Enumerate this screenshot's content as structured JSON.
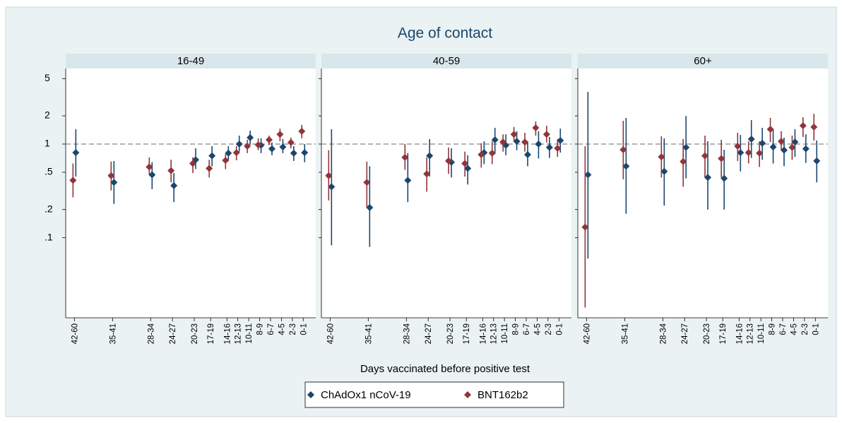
{
  "chart_data": {
    "type": "errorbar",
    "title": "Age of contact",
    "x_label": "Days vaccinated before positive test",
    "log_y": true,
    "reference_line": 1,
    "x": [
      42,
      35,
      28,
      24,
      20,
      17,
      14,
      12,
      10,
      8,
      6,
      4,
      2,
      0
    ],
    "xlim": [
      43.6,
      -2.3
    ],
    "xticks": [
      {
        "value": 42,
        "label": "42-60"
      },
      {
        "value": 35,
        "label": "35-41"
      },
      {
        "value": 28,
        "label": "28-34"
      },
      {
        "value": 24,
        "label": "24-27"
      },
      {
        "value": 20,
        "label": "20-23"
      },
      {
        "value": 17,
        "label": "17-19"
      },
      {
        "value": 14,
        "label": "14-16"
      },
      {
        "value": 12,
        "label": "12-13"
      },
      {
        "value": 10,
        "label": "10-11"
      },
      {
        "value": 8,
        "label": "8-9"
      },
      {
        "value": 6,
        "label": "6-7"
      },
      {
        "value": 4,
        "label": "4-5"
      },
      {
        "value": 2,
        "label": "2-3"
      },
      {
        "value": 0,
        "label": "0-1"
      }
    ],
    "ylim": [
      0.014,
      6.4
    ],
    "yticks": [
      5,
      2,
      1,
      {
        "value": 0.5,
        "label": ".5"
      },
      {
        "value": 0.2,
        "label": ".2"
      },
      {
        "value": 0.1,
        "label": ".1"
      }
    ],
    "series": [
      {
        "name": "ChAdOx1 nCoV-19",
        "color": "#1a476f"
      },
      {
        "name": "BNT162b2",
        "color": "#90353b"
      }
    ],
    "panels": [
      {
        "title": "16-49",
        "series": [
          {
            "values": [
              0.81,
              0.39,
              0.47,
              0.36,
              0.68,
              0.75,
              0.8,
              1.0,
              1.17,
              0.97,
              0.89,
              0.93,
              0.8,
              0.81
            ],
            "lower": [
              0.45,
              0.23,
              0.33,
              0.24,
              0.54,
              0.58,
              0.66,
              0.83,
              0.98,
              0.8,
              0.76,
              0.8,
              0.66,
              0.64
            ],
            "upper": [
              1.44,
              0.66,
              0.64,
              0.49,
              0.9,
              0.95,
              0.95,
              1.23,
              1.39,
              1.15,
              1.04,
              1.13,
              0.95,
              1.0
            ]
          },
          {
            "values": [
              0.41,
              0.46,
              0.57,
              0.52,
              0.62,
              0.55,
              0.67,
              0.81,
              0.95,
              0.98,
              1.11,
              1.27,
              1.04,
              1.37
            ],
            "lower": [
              0.27,
              0.32,
              0.47,
              0.39,
              0.49,
              0.44,
              0.54,
              0.67,
              0.8,
              0.86,
              0.98,
              1.07,
              0.9,
              1.15
            ],
            "upper": [
              0.62,
              0.65,
              0.72,
              0.68,
              0.72,
              0.68,
              0.78,
              0.95,
              1.11,
              1.15,
              1.23,
              1.46,
              1.17,
              1.6
            ]
          }
        ]
      },
      {
        "title": "40-59",
        "series": [
          {
            "values": [
              0.35,
              0.21,
              0.41,
              0.75,
              0.64,
              0.55,
              0.81,
              1.11,
              0.97,
              1.07,
              0.77,
              1.0,
              0.92,
              1.09
            ],
            "lower": [
              0.083,
              0.08,
              0.24,
              0.45,
              0.44,
              0.37,
              0.61,
              0.78,
              0.76,
              0.86,
              0.58,
              0.7,
              0.71,
              0.81
            ],
            "upper": [
              1.44,
              0.58,
              0.8,
              1.13,
              0.9,
              0.76,
              1.07,
              1.49,
              1.27,
              1.37,
              1.07,
              1.37,
              1.19,
              1.46
            ]
          },
          {
            "values": [
              0.46,
              0.39,
              0.72,
              0.48,
              0.66,
              0.62,
              0.77,
              0.8,
              1.05,
              1.27,
              1.05,
              1.49,
              1.27,
              0.9
            ],
            "lower": [
              0.25,
              0.21,
              0.53,
              0.31,
              0.48,
              0.45,
              0.56,
              0.61,
              0.83,
              1.07,
              0.83,
              1.23,
              1.04,
              0.73
            ],
            "upper": [
              0.86,
              0.65,
              1.0,
              0.72,
              0.92,
              0.83,
              1.02,
              1.07,
              1.27,
              1.52,
              1.32,
              1.74,
              1.57,
              1.13
            ]
          }
        ]
      },
      {
        "title": "60+",
        "series": [
          {
            "values": [
              0.47,
              0.58,
              0.51,
              0.92,
              0.44,
              0.43,
              0.81,
              1.13,
              1.02,
              0.93,
              0.86,
              1.05,
              0.89,
              0.66
            ],
            "lower": [
              0.06,
              0.18,
              0.22,
              0.43,
              0.2,
              0.2,
              0.51,
              0.71,
              0.68,
              0.62,
              0.58,
              0.73,
              0.63,
              0.39
            ],
            "upper": [
              3.6,
              1.9,
              1.15,
              1.99,
              1.07,
              0.87,
              1.25,
              1.8,
              1.49,
              1.44,
              1.17,
              1.44,
              1.27,
              1.09
            ]
          },
          {
            "values": [
              0.13,
              0.87,
              0.73,
              0.65,
              0.75,
              0.7,
              0.95,
              0.81,
              0.8,
              1.44,
              1.07,
              0.92,
              1.57,
              1.52
            ],
            "lower": [
              0.018,
              0.42,
              0.44,
              0.35,
              0.44,
              0.44,
              0.66,
              0.62,
              0.57,
              1.05,
              0.86,
              0.68,
              1.19,
              1.09
            ],
            "upper": [
              0.95,
              1.77,
              1.21,
              1.13,
              1.23,
              1.11,
              1.32,
              1.07,
              1.07,
              1.9,
              1.37,
              1.23,
              1.93,
              2.1
            ]
          }
        ]
      }
    ]
  }
}
